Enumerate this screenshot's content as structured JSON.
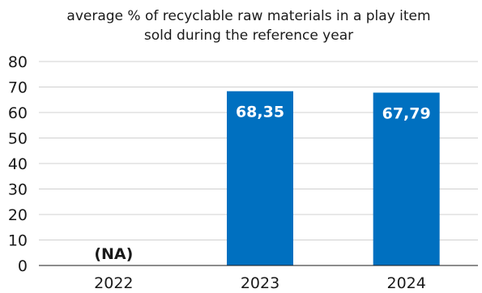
{
  "chart_data": {
    "type": "bar",
    "title": [
      "average % of recyclable raw materials in a play item",
      "sold during the reference year"
    ],
    "categories": [
      "2022",
      "2023",
      "2024"
    ],
    "values": [
      null,
      68.35,
      67.79
    ],
    "data_labels": [
      "(NA)",
      "68,35",
      "67,79"
    ],
    "yticks": [
      "0",
      "10",
      "20",
      "30",
      "40",
      "50",
      "60",
      "70",
      "80"
    ],
    "ylim": [
      0,
      80
    ],
    "grid": true,
    "bar_color": "#0070c0",
    "gridline_color": "#d0d0d0",
    "na_label_color": "#1a1a1a",
    "bar_label_color": "#ffffff"
  }
}
